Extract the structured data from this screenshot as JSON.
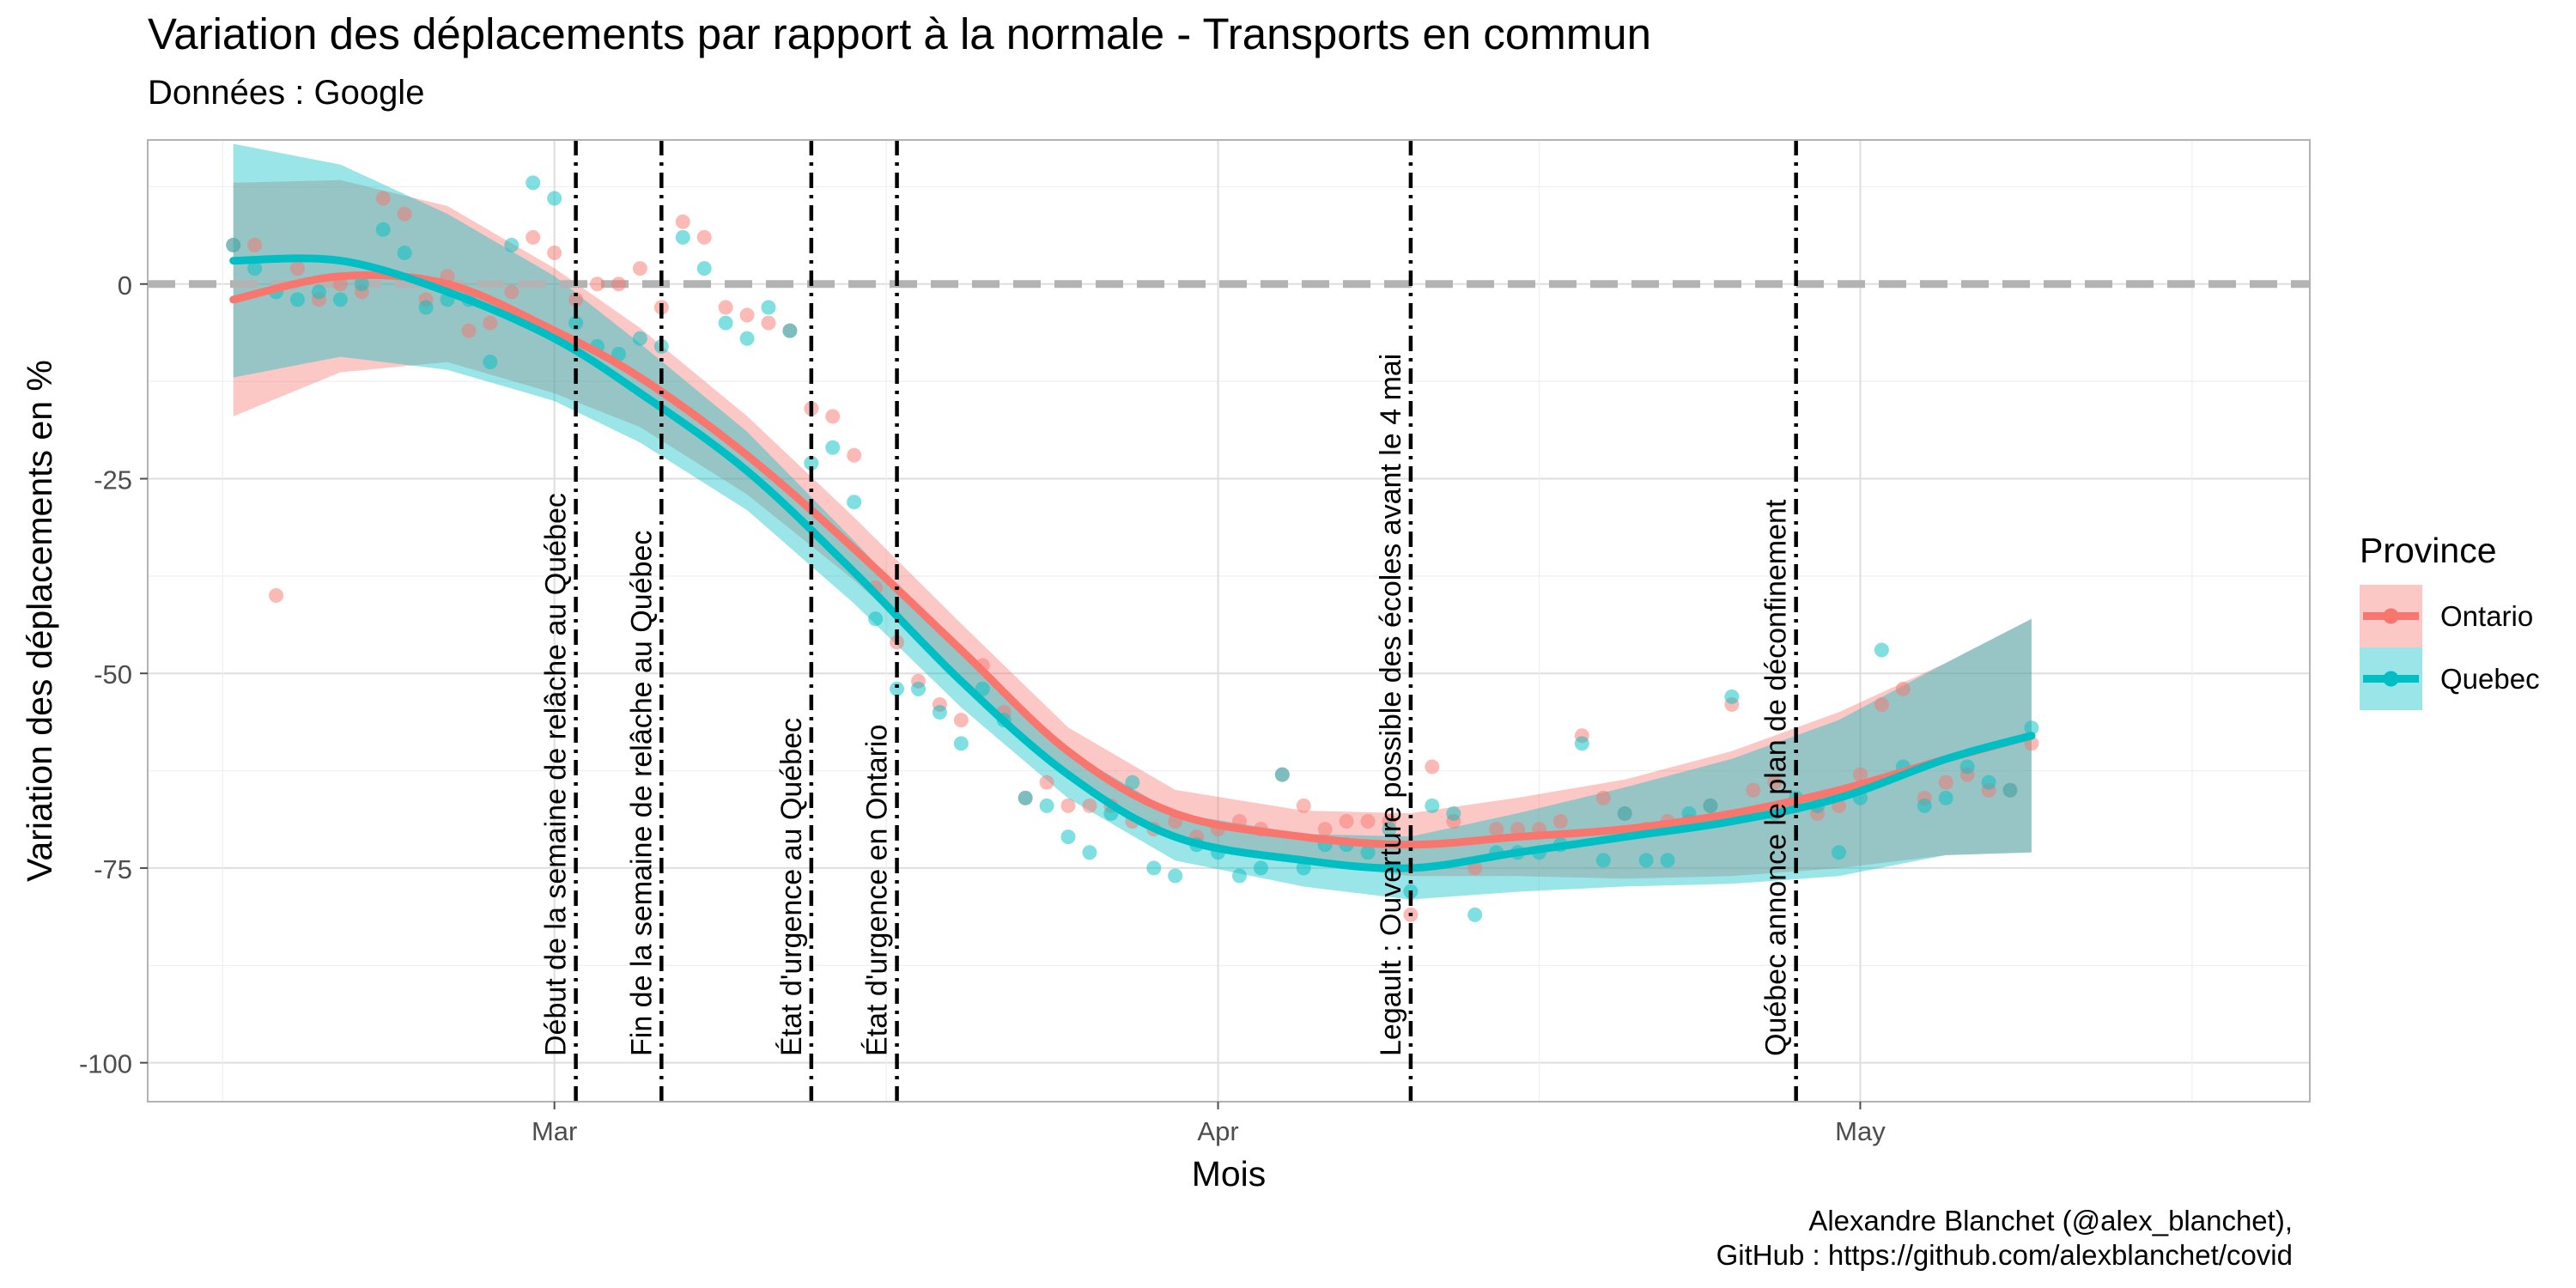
{
  "chart_data": {
    "type": "scatter",
    "title": "Variation des déplacements par rapport à la normale - Transports en commun",
    "subtitle": "Données : Google",
    "xlabel": "Mois",
    "ylabel": "Variation des déplacements en %",
    "x_ticks": [
      {
        "date": "2020-03-01",
        "label": "Mar"
      },
      {
        "date": "2020-04-01",
        "label": "Apr"
      },
      {
        "date": "2020-05-01",
        "label": "May"
      }
    ],
    "y_ticks": [
      0,
      -25,
      -50,
      -75,
      -100
    ],
    "xlim": [
      "2020-02-11",
      "2020-05-22"
    ],
    "ylim": [
      -105,
      18.5
    ],
    "grid": true,
    "reference_line": 0,
    "legend": {
      "title": "Province",
      "position": "right"
    },
    "events": [
      {
        "date": "2020-03-02",
        "label": "Début de la semaine de relâche au Québec"
      },
      {
        "date": "2020-03-06",
        "label": "Fin de la semaine de relâche au Québec"
      },
      {
        "date": "2020-03-13",
        "label": "État d'urgence au Québec"
      },
      {
        "date": "2020-03-17",
        "label": "État d'urgence en Ontario"
      },
      {
        "date": "2020-04-10",
        "label": "Legault : Ouverture possible des écoles avant le 4 mai"
      },
      {
        "date": "2020-04-28",
        "label": "Québec annonce le plan de déconfinement"
      }
    ],
    "series": [
      {
        "name": "Ontario",
        "color": "#F8766D",
        "values": [
          [
            "2020-02-15",
            5
          ],
          [
            "2020-02-16",
            5
          ],
          [
            "2020-02-17",
            -40
          ],
          [
            "2020-02-18",
            2
          ],
          [
            "2020-02-19",
            -2
          ],
          [
            "2020-02-20",
            0
          ],
          [
            "2020-02-21",
            -1
          ],
          [
            "2020-02-22",
            11
          ],
          [
            "2020-02-23",
            9
          ],
          [
            "2020-02-24",
            -2
          ],
          [
            "2020-02-25",
            1
          ],
          [
            "2020-02-26",
            -6
          ],
          [
            "2020-02-27",
            -5
          ],
          [
            "2020-02-28",
            -1
          ],
          [
            "2020-02-29",
            6
          ],
          [
            "2020-03-01",
            4
          ],
          [
            "2020-03-02",
            -2
          ],
          [
            "2020-03-03",
            0
          ],
          [
            "2020-03-04",
            0
          ],
          [
            "2020-03-05",
            2
          ],
          [
            "2020-03-06",
            -3
          ],
          [
            "2020-03-07",
            8
          ],
          [
            "2020-03-08",
            6
          ],
          [
            "2020-03-09",
            -3
          ],
          [
            "2020-03-10",
            -4
          ],
          [
            "2020-03-11",
            -5
          ],
          [
            "2020-03-12",
            -6
          ],
          [
            "2020-03-13",
            -16
          ],
          [
            "2020-03-14",
            -17
          ],
          [
            "2020-03-15",
            -22
          ],
          [
            "2020-03-16",
            -39
          ],
          [
            "2020-03-17",
            -46
          ],
          [
            "2020-03-18",
            -51
          ],
          [
            "2020-03-19",
            -54
          ],
          [
            "2020-03-20",
            -56
          ],
          [
            "2020-03-21",
            -49
          ],
          [
            "2020-03-22",
            -55
          ],
          [
            "2020-03-23",
            -66
          ],
          [
            "2020-03-24",
            -64
          ],
          [
            "2020-03-25",
            -67
          ],
          [
            "2020-03-26",
            -67
          ],
          [
            "2020-03-27",
            -67
          ],
          [
            "2020-03-28",
            -69
          ],
          [
            "2020-03-29",
            -70
          ],
          [
            "2020-03-30",
            -69
          ],
          [
            "2020-03-31",
            -71
          ],
          [
            "2020-04-01",
            -70
          ],
          [
            "2020-04-02",
            -69
          ],
          [
            "2020-04-03",
            -70
          ],
          [
            "2020-04-04",
            -63
          ],
          [
            "2020-04-05",
            -67
          ],
          [
            "2020-04-06",
            -70
          ],
          [
            "2020-04-07",
            -69
          ],
          [
            "2020-04-08",
            -69
          ],
          [
            "2020-04-09",
            -69
          ],
          [
            "2020-04-10",
            -81
          ],
          [
            "2020-04-11",
            -62
          ],
          [
            "2020-04-12",
            -69
          ],
          [
            "2020-04-13",
            -75
          ],
          [
            "2020-04-14",
            -70
          ],
          [
            "2020-04-15",
            -70
          ],
          [
            "2020-04-16",
            -70
          ],
          [
            "2020-04-17",
            -69
          ],
          [
            "2020-04-18",
            -58
          ],
          [
            "2020-04-19",
            -66
          ],
          [
            "2020-04-20",
            -68
          ],
          [
            "2020-04-21",
            -70
          ],
          [
            "2020-04-22",
            -69
          ],
          [
            "2020-04-23",
            -69
          ],
          [
            "2020-04-24",
            -67
          ],
          [
            "2020-04-25",
            -54
          ],
          [
            "2020-04-26",
            -65
          ],
          [
            "2020-04-27",
            -64
          ],
          [
            "2020-04-28",
            -67
          ],
          [
            "2020-04-29",
            -68
          ],
          [
            "2020-04-30",
            -67
          ],
          [
            "2020-05-01",
            -63
          ],
          [
            "2020-05-02",
            -54
          ],
          [
            "2020-05-03",
            -52
          ],
          [
            "2020-05-04",
            -66
          ],
          [
            "2020-05-05",
            -64
          ],
          [
            "2020-05-06",
            -63
          ],
          [
            "2020-05-07",
            -65
          ],
          [
            "2020-05-08",
            -65
          ],
          [
            "2020-05-09",
            -59
          ]
        ],
        "trend": [
          [
            "2020-02-15",
            -2
          ],
          [
            "2020-02-20",
            1
          ],
          [
            "2020-02-25",
            0
          ],
          [
            "2020-03-01",
            -6
          ],
          [
            "2020-03-05",
            -12
          ],
          [
            "2020-03-10",
            -22
          ],
          [
            "2020-03-15",
            -34
          ],
          [
            "2020-03-20",
            -47
          ],
          [
            "2020-03-25",
            -60
          ],
          [
            "2020-03-30",
            -68
          ],
          [
            "2020-04-05",
            -71
          ],
          [
            "2020-04-10",
            -72
          ],
          [
            "2020-04-15",
            -71
          ],
          [
            "2020-04-20",
            -70
          ],
          [
            "2020-04-25",
            -68
          ],
          [
            "2020-04-30",
            -65
          ],
          [
            "2020-05-05",
            -61
          ],
          [
            "2020-05-09",
            -58
          ]
        ]
      },
      {
        "name": "Quebec",
        "color": "#00BFC4",
        "values": [
          [
            "2020-02-15",
            5
          ],
          [
            "2020-02-16",
            2
          ],
          [
            "2020-02-17",
            -1
          ],
          [
            "2020-02-18",
            -2
          ],
          [
            "2020-02-19",
            -1
          ],
          [
            "2020-02-20",
            -2
          ],
          [
            "2020-02-21",
            0
          ],
          [
            "2020-02-22",
            7
          ],
          [
            "2020-02-23",
            4
          ],
          [
            "2020-02-24",
            -3
          ],
          [
            "2020-02-25",
            -2
          ],
          [
            "2020-02-26",
            -2
          ],
          [
            "2020-02-27",
            -10
          ],
          [
            "2020-02-28",
            5
          ],
          [
            "2020-02-29",
            13
          ],
          [
            "2020-03-01",
            11
          ],
          [
            "2020-03-02",
            -5
          ],
          [
            "2020-03-03",
            -8
          ],
          [
            "2020-03-04",
            -9
          ],
          [
            "2020-03-05",
            -7
          ],
          [
            "2020-03-06",
            -8
          ],
          [
            "2020-03-07",
            6
          ],
          [
            "2020-03-08",
            2
          ],
          [
            "2020-03-09",
            -5
          ],
          [
            "2020-03-10",
            -7
          ],
          [
            "2020-03-11",
            -3
          ],
          [
            "2020-03-12",
            -6
          ],
          [
            "2020-03-13",
            -23
          ],
          [
            "2020-03-14",
            -21
          ],
          [
            "2020-03-15",
            -28
          ],
          [
            "2020-03-16",
            -43
          ],
          [
            "2020-03-17",
            -52
          ],
          [
            "2020-03-18",
            -52
          ],
          [
            "2020-03-19",
            -55
          ],
          [
            "2020-03-20",
            -59
          ],
          [
            "2020-03-21",
            -52
          ],
          [
            "2020-03-22",
            -56
          ],
          [
            "2020-03-23",
            -66
          ],
          [
            "2020-03-24",
            -67
          ],
          [
            "2020-03-25",
            -71
          ],
          [
            "2020-03-26",
            -73
          ],
          [
            "2020-03-27",
            -68
          ],
          [
            "2020-03-28",
            -64
          ],
          [
            "2020-03-29",
            -75
          ],
          [
            "2020-03-30",
            -76
          ],
          [
            "2020-03-31",
            -72
          ],
          [
            "2020-04-01",
            -73
          ],
          [
            "2020-04-02",
            -76
          ],
          [
            "2020-04-03",
            -75
          ],
          [
            "2020-04-04",
            -63
          ],
          [
            "2020-04-05",
            -75
          ],
          [
            "2020-04-06",
            -72
          ],
          [
            "2020-04-07",
            -72
          ],
          [
            "2020-04-08",
            -73
          ],
          [
            "2020-04-09",
            -70
          ],
          [
            "2020-04-10",
            -78
          ],
          [
            "2020-04-11",
            -67
          ],
          [
            "2020-04-12",
            -68
          ],
          [
            "2020-04-13",
            -81
          ],
          [
            "2020-04-14",
            -73
          ],
          [
            "2020-04-15",
            -73
          ],
          [
            "2020-04-16",
            -73
          ],
          [
            "2020-04-17",
            -72
          ],
          [
            "2020-04-18",
            -59
          ],
          [
            "2020-04-19",
            -74
          ],
          [
            "2020-04-20",
            -68
          ],
          [
            "2020-04-21",
            -74
          ],
          [
            "2020-04-22",
            -74
          ],
          [
            "2020-04-23",
            -68
          ],
          [
            "2020-04-24",
            -67
          ],
          [
            "2020-04-25",
            -53
          ],
          [
            "2020-04-26",
            -68
          ],
          [
            "2020-04-27",
            -68
          ],
          [
            "2020-04-28",
            -66
          ],
          [
            "2020-04-29",
            -67
          ],
          [
            "2020-04-30",
            -73
          ],
          [
            "2020-05-01",
            -66
          ],
          [
            "2020-05-02",
            -47
          ],
          [
            "2020-05-03",
            -62
          ],
          [
            "2020-05-04",
            -67
          ],
          [
            "2020-05-05",
            -66
          ],
          [
            "2020-05-06",
            -62
          ],
          [
            "2020-05-07",
            -64
          ],
          [
            "2020-05-08",
            -65
          ],
          [
            "2020-05-09",
            -57
          ]
        ],
        "trend": [
          [
            "2020-02-15",
            3
          ],
          [
            "2020-02-20",
            3
          ],
          [
            "2020-02-25",
            -1
          ],
          [
            "2020-03-01",
            -7
          ],
          [
            "2020-03-05",
            -14
          ],
          [
            "2020-03-10",
            -24
          ],
          [
            "2020-03-15",
            -37
          ],
          [
            "2020-03-20",
            -51
          ],
          [
            "2020-03-25",
            -63
          ],
          [
            "2020-03-30",
            -71
          ],
          [
            "2020-04-05",
            -74
          ],
          [
            "2020-04-10",
            -75
          ],
          [
            "2020-04-15",
            -73
          ],
          [
            "2020-04-20",
            -71
          ],
          [
            "2020-04-25",
            -69
          ],
          [
            "2020-04-30",
            -66
          ],
          [
            "2020-05-05",
            -61
          ],
          [
            "2020-05-09",
            -58
          ]
        ]
      }
    ]
  },
  "caption_lines": [
    "Alexandre Blanchet (@alex_blanchet),",
    "GitHub : https://github.com/alexblanchet/covid"
  ]
}
